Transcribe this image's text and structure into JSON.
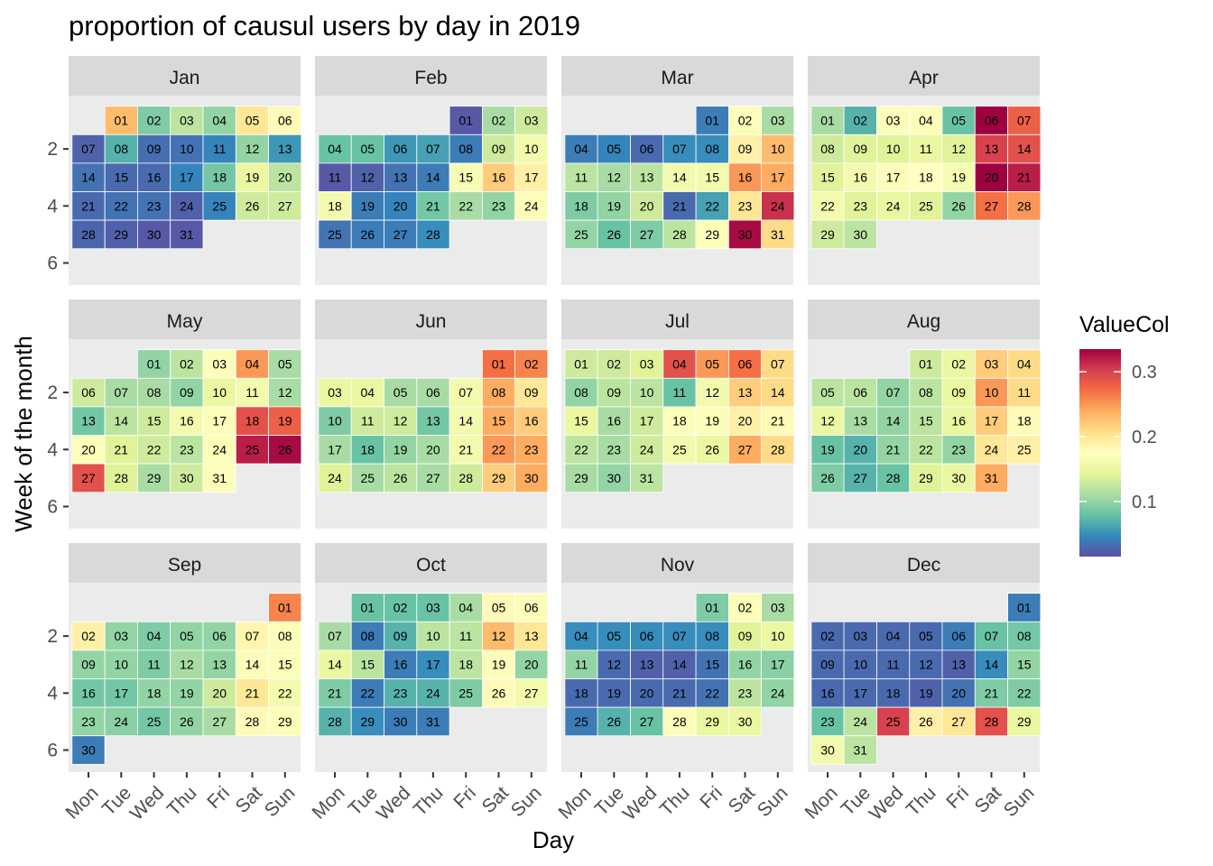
{
  "chart_data": {
    "type": "heatmap",
    "title": "proportion of causul users by day in 2019",
    "xlabel": "Day",
    "ylabel": "Week of the month",
    "weekdays": [
      "Mon",
      "Tue",
      "Wed",
      "Thu",
      "Fri",
      "Sat",
      "Sun"
    ],
    "y_ticks": [
      2,
      4,
      6
    ],
    "legend": {
      "title": "ValueCol",
      "ticks": [
        0.1,
        0.2,
        0.3
      ],
      "min": 0.015,
      "max": 0.335
    },
    "color_scale": [
      "#5E4FA2",
      "#3288BD",
      "#66C2A5",
      "#ABDDA4",
      "#E6F598",
      "#FFFFBF",
      "#FEE08B",
      "#FDAE61",
      "#F46D43",
      "#D53E4F",
      "#9E0142"
    ],
    "months": [
      {
        "name": "Jan",
        "start_weekday": 2,
        "values": [
          0.23,
          0.09,
          0.12,
          0.1,
          0.2,
          0.18,
          0.026,
          0.07,
          0.033,
          0.035,
          0.045,
          0.1,
          0.055,
          0.035,
          0.03,
          0.03,
          0.045,
          0.085,
          0.15,
          0.12,
          0.03,
          0.035,
          0.035,
          0.025,
          0.045,
          0.13,
          0.13,
          0.028,
          0.025,
          0.02,
          0.02
        ]
      },
      {
        "name": "Feb",
        "start_weekday": 5,
        "values": [
          0.02,
          0.11,
          0.13,
          0.08,
          0.08,
          0.055,
          0.06,
          0.04,
          0.13,
          0.16,
          0.02,
          0.025,
          0.035,
          0.04,
          0.165,
          0.22,
          0.19,
          0.16,
          0.04,
          0.045,
          0.085,
          0.11,
          0.1,
          0.17,
          0.035,
          0.04,
          0.04,
          0.05
        ]
      },
      {
        "name": "Mar",
        "start_weekday": 5,
        "values": [
          0.04,
          0.17,
          0.11,
          0.04,
          0.045,
          0.03,
          0.05,
          0.05,
          0.19,
          0.23,
          0.12,
          0.11,
          0.12,
          0.16,
          0.16,
          0.25,
          0.24,
          0.09,
          0.1,
          0.13,
          0.03,
          0.06,
          0.2,
          0.31,
          0.1,
          0.08,
          0.09,
          0.12,
          0.17,
          0.33,
          0.21
        ]
      },
      {
        "name": "Apr",
        "start_weekday": 1,
        "values": [
          0.11,
          0.07,
          0.17,
          0.17,
          0.08,
          0.335,
          0.28,
          0.13,
          0.14,
          0.14,
          0.15,
          0.14,
          0.3,
          0.29,
          0.14,
          0.16,
          0.17,
          0.175,
          0.165,
          0.335,
          0.32,
          0.16,
          0.14,
          0.15,
          0.14,
          0.1,
          0.27,
          0.25,
          0.13,
          0.12
        ]
      },
      {
        "name": "May",
        "start_weekday": 3,
        "values": [
          0.1,
          0.12,
          0.17,
          0.25,
          0.11,
          0.13,
          0.11,
          0.11,
          0.1,
          0.15,
          0.16,
          0.11,
          0.085,
          0.12,
          0.13,
          0.16,
          0.17,
          0.29,
          0.28,
          0.17,
          0.14,
          0.13,
          0.12,
          0.17,
          0.32,
          0.33,
          0.29,
          0.14,
          0.11,
          0.13,
          0.17
        ]
      },
      {
        "name": "Jun",
        "start_weekday": 6,
        "values": [
          0.27,
          0.26,
          0.15,
          0.15,
          0.11,
          0.11,
          0.16,
          0.24,
          0.2,
          0.09,
          0.13,
          0.13,
          0.085,
          0.16,
          0.24,
          0.22,
          0.11,
          0.08,
          0.1,
          0.11,
          0.16,
          0.25,
          0.24,
          0.14,
          0.11,
          0.12,
          0.11,
          0.13,
          0.22,
          0.24
        ]
      },
      {
        "name": "Jul",
        "start_weekday": 1,
        "values": [
          0.13,
          0.13,
          0.14,
          0.29,
          0.25,
          0.27,
          0.21,
          0.1,
          0.12,
          0.12,
          0.08,
          0.16,
          0.22,
          0.21,
          0.15,
          0.11,
          0.13,
          0.17,
          0.17,
          0.19,
          0.18,
          0.12,
          0.11,
          0.13,
          0.16,
          0.15,
          0.24,
          0.21,
          0.11,
          0.1,
          0.12
        ]
      },
      {
        "name": "Aug",
        "start_weekday": 4,
        "values": [
          0.13,
          0.15,
          0.22,
          0.21,
          0.12,
          0.12,
          0.1,
          0.12,
          0.15,
          0.25,
          0.21,
          0.15,
          0.11,
          0.1,
          0.12,
          0.15,
          0.22,
          0.18,
          0.08,
          0.07,
          0.1,
          0.12,
          0.1,
          0.2,
          0.19,
          0.09,
          0.07,
          0.08,
          0.14,
          0.15,
          0.24
        ]
      },
      {
        "name": "Sep",
        "start_weekday": 7,
        "values": [
          0.26,
          0.19,
          0.1,
          0.09,
          0.1,
          0.1,
          0.185,
          0.17,
          0.1,
          0.1,
          0.09,
          0.11,
          0.1,
          0.17,
          0.17,
          0.085,
          0.085,
          0.1,
          0.1,
          0.13,
          0.2,
          0.16,
          0.1,
          0.095,
          0.085,
          0.1,
          0.11,
          0.18,
          0.17,
          0.04
        ]
      },
      {
        "name": "Oct",
        "start_weekday": 2,
        "values": [
          0.08,
          0.08,
          0.08,
          0.11,
          0.18,
          0.17,
          0.11,
          0.04,
          0.07,
          0.12,
          0.12,
          0.23,
          0.2,
          0.15,
          0.12,
          0.04,
          0.05,
          0.12,
          0.17,
          0.1,
          0.09,
          0.04,
          0.07,
          0.07,
          0.09,
          0.18,
          0.16,
          0.07,
          0.05,
          0.04,
          0.04
        ]
      },
      {
        "name": "Nov",
        "start_weekday": 5,
        "values": [
          0.09,
          0.17,
          0.11,
          0.05,
          0.05,
          0.05,
          0.05,
          0.05,
          0.14,
          0.15,
          0.1,
          0.03,
          0.025,
          0.025,
          0.035,
          0.1,
          0.095,
          0.03,
          0.03,
          0.03,
          0.03,
          0.035,
          0.12,
          0.1,
          0.04,
          0.07,
          0.08,
          0.17,
          0.15,
          0.15
        ]
      },
      {
        "name": "Dec",
        "start_weekday": 7,
        "values": [
          0.04,
          0.03,
          0.03,
          0.03,
          0.03,
          0.04,
          0.08,
          0.085,
          0.03,
          0.03,
          0.03,
          0.03,
          0.025,
          0.05,
          0.1,
          0.03,
          0.03,
          0.03,
          0.025,
          0.035,
          0.09,
          0.09,
          0.08,
          0.12,
          0.3,
          0.19,
          0.2,
          0.29,
          0.15,
          0.16,
          0.12
        ]
      }
    ]
  }
}
